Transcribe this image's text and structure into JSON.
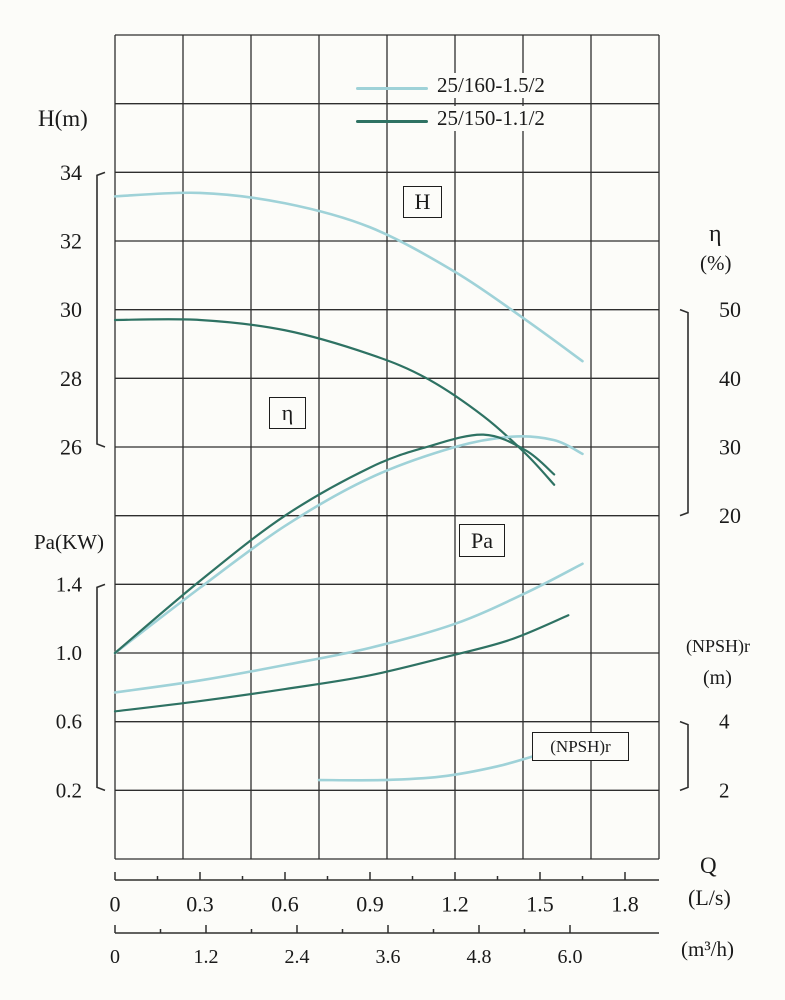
{
  "colors": {
    "light": "#9fd2d8",
    "dark": "#2e7263",
    "grid": "#2e2e2e",
    "text": "#1a1a1a",
    "background": "#fcfcf9"
  },
  "axis_titles": {
    "head": "H(m)",
    "power": "Pa(KW)",
    "efficiency": "η",
    "efficiency_unit": "(%)",
    "npsh": "(NPSH)r",
    "npsh_unit": "(m)",
    "flow": "Q",
    "flow_unit_ls": "(L/s)",
    "flow_unit_m3h": "(m³/h)"
  },
  "curve_labels": {
    "head": "H",
    "efficiency": "η",
    "power": "Pa",
    "npsh": "(NPSH)r"
  },
  "legend": {
    "position": "top-center",
    "items": [
      {
        "label": "25/160-1.5/2",
        "color": "light"
      },
      {
        "label": "25/150-1.1/2",
        "color": "dark"
      }
    ]
  },
  "chart_data": {
    "type": "line",
    "grid": true,
    "legend_position": "top-center",
    "x_axis": {
      "label": "Q",
      "ticks_ls": [
        "0",
        "0.3",
        "0.6",
        "0.9",
        "1.2",
        "1.5",
        "1.8"
      ],
      "ticks_m3h": [
        "0",
        "1.2",
        "2.4",
        "3.6",
        "4.8",
        "6.0"
      ],
      "range_ls": [
        0,
        1.8
      ],
      "range_m3h": [
        0,
        6.0
      ]
    },
    "y_axes": {
      "H": {
        "label": "H(m)",
        "ticks": [
          "34",
          "32",
          "30",
          "28",
          "26"
        ],
        "range": [
          24,
          38
        ]
      },
      "Pa": {
        "label": "Pa(KW)",
        "ticks": [
          "1.4",
          "1.0",
          "0.6",
          "0.2"
        ],
        "range": [
          0.2,
          1.6
        ]
      },
      "eta": {
        "label": "η (%)",
        "ticks": [
          "50",
          "40",
          "30",
          "20"
        ],
        "range": [
          0,
          50
        ]
      },
      "npsh": {
        "label": "(NPSH)r (m)",
        "ticks": [
          "4",
          "2"
        ],
        "range": [
          2,
          4
        ]
      }
    },
    "series": [
      {
        "name": "25/160-1.5/2 head H",
        "curve": "H",
        "axis": "H",
        "color": "light",
        "x_ls": [
          0,
          0.3,
          0.6,
          0.9,
          1.2,
          1.45,
          1.65
        ],
        "y": [
          33.3,
          33.4,
          33.1,
          32.4,
          31.1,
          29.7,
          28.5
        ]
      },
      {
        "name": "25/150-1.1/2 head H",
        "curve": "H",
        "axis": "H",
        "color": "dark",
        "x_ls": [
          0,
          0.3,
          0.6,
          0.9,
          1.1,
          1.3,
          1.45,
          1.55
        ],
        "y": [
          29.7,
          29.7,
          29.4,
          28.7,
          28.0,
          26.9,
          25.8,
          24.9
        ]
      },
      {
        "name": "25/160-1.5/2 efficiency η",
        "curve": "eta",
        "axis": "eta",
        "color": "light",
        "x_ls": [
          0,
          0.3,
          0.6,
          0.9,
          1.2,
          1.4,
          1.55,
          1.65
        ],
        "y": [
          0,
          9.5,
          18.5,
          25.5,
          30,
          31.5,
          31,
          29
        ]
      },
      {
        "name": "25/150-1.1/2 efficiency η",
        "curve": "eta",
        "axis": "eta",
        "color": "dark",
        "x_ls": [
          0,
          0.3,
          0.6,
          0.9,
          1.1,
          1.3,
          1.45,
          1.55
        ],
        "y": [
          0,
          10.5,
          20,
          27,
          30,
          31.8,
          29.5,
          26
        ]
      },
      {
        "name": "25/160-1.5/2 power Pa",
        "curve": "Pa",
        "axis": "Pa",
        "color": "light",
        "x_ls": [
          0,
          0.3,
          0.6,
          0.9,
          1.2,
          1.45,
          1.65
        ],
        "y": [
          0.77,
          0.84,
          0.93,
          1.03,
          1.17,
          1.35,
          1.52
        ]
      },
      {
        "name": "25/150-1.1/2 power Pa",
        "curve": "Pa",
        "axis": "Pa",
        "color": "dark",
        "x_ls": [
          0,
          0.3,
          0.6,
          0.9,
          1.2,
          1.4,
          1.6
        ],
        "y": [
          0.66,
          0.72,
          0.79,
          0.87,
          0.99,
          1.08,
          1.22
        ]
      },
      {
        "name": "25/160-1.5/2 (NPSH)r",
        "curve": "npsh",
        "axis": "npsh",
        "color": "light",
        "x_ls": [
          0.72,
          0.95,
          1.15,
          1.35,
          1.52
        ],
        "y": [
          2.3,
          2.3,
          2.4,
          2.7,
          3.1
        ]
      }
    ]
  }
}
